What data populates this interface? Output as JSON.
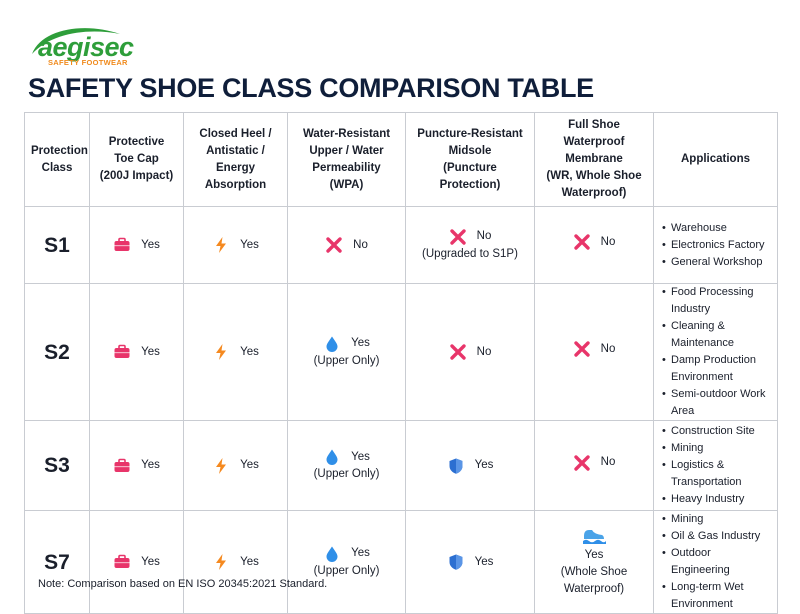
{
  "brand": {
    "name": "aegisec",
    "tagline": "SAFETY FOOTWEAR"
  },
  "title": "SAFETY SHOE CLASS COMPARISON TABLE",
  "headers": [
    [
      "Protection",
      "Class"
    ],
    [
      "Protective",
      "Toe Cap",
      "(200J Impact)"
    ],
    [
      "Closed Heel /",
      "Antistatic /",
      "Energy Absorption"
    ],
    [
      "Water-Resistant",
      "Upper / Water",
      "Permeability (WPA)"
    ],
    [
      "Puncture-Resistant",
      "Midsole",
      "(Puncture Protection)"
    ],
    [
      "Full Shoe Waterproof",
      "Membrane",
      "(WR, Whole Shoe",
      "Waterproof)"
    ],
    [
      "Applications"
    ]
  ],
  "rows": [
    {
      "cls": "S1",
      "toe": {
        "icon": "toe-cap-icon",
        "text": "Yes"
      },
      "heel": {
        "icon": "lightning-icon",
        "text": "Yes"
      },
      "water": {
        "icon": "cross-icon",
        "text": "No",
        "sub": ""
      },
      "puncture": {
        "icon": "cross-icon",
        "text": "No",
        "sub": "(Upgraded to S1P)"
      },
      "membrane": {
        "icon": "cross-icon",
        "lines": [
          "No"
        ]
      },
      "apps": [
        "Warehouse",
        "Electronics Factory",
        "General Workshop"
      ]
    },
    {
      "cls": "S2",
      "toe": {
        "icon": "toe-cap-icon",
        "text": "Yes"
      },
      "heel": {
        "icon": "lightning-icon",
        "text": "Yes"
      },
      "water": {
        "icon": "water-drop-icon",
        "text": "Yes",
        "sub": "(Upper Only)"
      },
      "puncture": {
        "icon": "cross-icon",
        "text": "No",
        "sub": ""
      },
      "membrane": {
        "icon": "cross-icon",
        "lines": [
          "No"
        ]
      },
      "apps": [
        "Food Processing Industry",
        "Cleaning & Maintenance",
        "Damp Production",
        "Environment",
        "Semi-outdoor Work Area"
      ]
    },
    {
      "cls": "S3",
      "toe": {
        "icon": "toe-cap-icon",
        "text": "Yes"
      },
      "heel": {
        "icon": "lightning-icon",
        "text": "Yes"
      },
      "water": {
        "icon": "water-drop-icon",
        "text": "Yes",
        "sub": "(Upper Only)"
      },
      "puncture": {
        "icon": "shield-icon",
        "text": "Yes",
        "sub": ""
      },
      "membrane": {
        "icon": "cross-icon",
        "lines": [
          "No"
        ]
      },
      "apps": [
        "Construction Site",
        "Mining",
        "Logistics & Transportation",
        "Heavy Industry"
      ]
    },
    {
      "cls": "S7",
      "toe": {
        "icon": "toe-cap-icon",
        "text": "Yes"
      },
      "heel": {
        "icon": "lightning-icon",
        "text": "Yes"
      },
      "water": {
        "icon": "water-drop-icon",
        "text": "Yes",
        "sub": "(Upper Only)"
      },
      "puncture": {
        "icon": "shield-icon",
        "text": "Yes",
        "sub": ""
      },
      "membrane": {
        "icon": "wave-shoe-icon",
        "lines": [
          "Yes",
          "(Whole Shoe",
          "Waterproof)"
        ]
      },
      "apps": [
        "Mining",
        "Oil & Gas Industry",
        "Outdoor Engineering",
        "Long-term Wet",
        "Environment"
      ]
    }
  ],
  "note": "Note: Comparison based on EN ISO 20345:2021 Standard.",
  "colors": {
    "title": "#0f1e3a",
    "brand_green": "#2e9e3a",
    "brand_orange": "#f08a1c",
    "cross": "#e8356a",
    "toe": "#e8356a",
    "bolt": "#f5891f",
    "drop": "#2f8fe8",
    "shield": "#2c6fd1"
  }
}
